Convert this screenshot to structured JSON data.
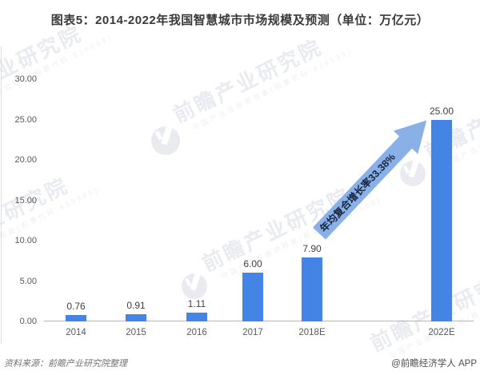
{
  "chart_data": {
    "type": "bar",
    "title": "图表5：2014-2022年我国智慧城市市场规模及预测（单位：万亿元）",
    "categories": [
      "2014",
      "2015",
      "2016",
      "2017",
      "2018E",
      "2022E"
    ],
    "values": [
      0.76,
      0.91,
      1.11,
      6.0,
      7.9,
      25.0
    ],
    "value_labels": [
      "0.76",
      "0.91",
      "1.11",
      "6.00",
      "7.90",
      "25.00"
    ],
    "xlabel": "",
    "ylabel": "",
    "ylim": [
      0,
      30
    ],
    "yticks": [
      "30.00",
      "25.00",
      "20.00",
      "15.00",
      "10.00",
      "5.00",
      "0.00"
    ],
    "grid": false,
    "legend": false,
    "annotation": "年均复合增长率33.38%"
  },
  "footer": {
    "source": "资料来源：前瞻产业研究院整理",
    "credit": "@前瞻经济学人 APP"
  },
  "watermark": {
    "big_text": "前瞻产业研究院",
    "small_text": "中国产业咨询领导者(股票代码:839599)",
    "logo": "qianzhan-logo"
  },
  "colors": {
    "bar": "#4484e4",
    "arrow": "#8ab1e7",
    "arrow_text": "#17233f",
    "axis": "#b5b5b5",
    "title_text": "#3a3a3a",
    "tick_text": "#595959",
    "watermark": "#e9ebf0"
  }
}
